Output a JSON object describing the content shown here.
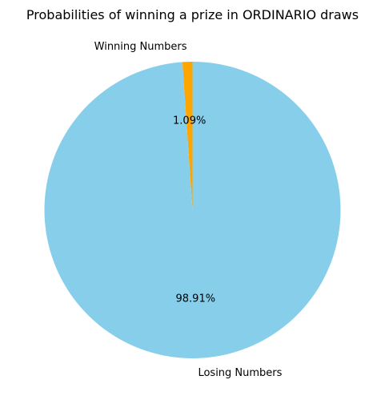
{
  "chart_data": {
    "type": "pie",
    "title": "Probabilities of winning a prize in ORDINARIO draws",
    "slices": [
      {
        "label": "Winning Numbers",
        "value": 1.09,
        "pct_label": "1.09%",
        "color": "#FFA500"
      },
      {
        "label": "Losing Numbers",
        "value": 98.91,
        "pct_label": "98.91%",
        "color": "#87CEEB"
      }
    ],
    "start_angle_deg": 90,
    "direction": "counterclockwise",
    "legend": "none"
  }
}
